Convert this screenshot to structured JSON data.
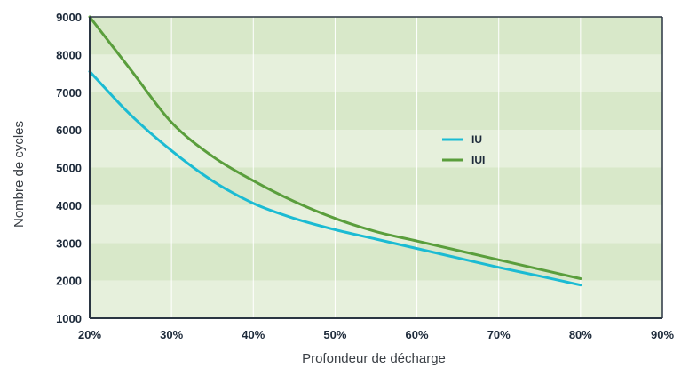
{
  "chart_data": {
    "type": "line",
    "xlabel": "Profondeur de décharge",
    "ylabel": "Nombre de cycles",
    "xlim": [
      20,
      90
    ],
    "ylim": [
      1000,
      9000
    ],
    "x_ticks": [
      "20%",
      "30%",
      "40%",
      "50%",
      "60%",
      "70%",
      "80%",
      "90%"
    ],
    "y_ticks": [
      "1000",
      "2000",
      "3000",
      "4000",
      "5000",
      "6000",
      "7000",
      "8000",
      "9000"
    ],
    "x_tick_values": [
      20,
      30,
      40,
      50,
      60,
      70,
      80,
      90
    ],
    "y_tick_values": [
      1000,
      2000,
      3000,
      4000,
      5000,
      6000,
      7000,
      8000,
      9000
    ],
    "series": [
      {
        "name": "IU",
        "color": "#1bbbd3",
        "x": [
          20,
          25,
          30,
          35,
          40,
          45,
          50,
          55,
          60,
          65,
          70,
          75,
          80
        ],
        "y": [
          7550,
          6400,
          5450,
          4650,
          4050,
          3650,
          3350,
          3100,
          2850,
          2600,
          2350,
          2120,
          1880
        ]
      },
      {
        "name": "IUI",
        "color": "#5a9e3c",
        "x": [
          20,
          25,
          30,
          35,
          40,
          45,
          50,
          55,
          60,
          65,
          70,
          75,
          80
        ],
        "y": [
          9000,
          7600,
          6200,
          5300,
          4650,
          4100,
          3650,
          3300,
          3050,
          2800,
          2550,
          2300,
          2050
        ]
      }
    ],
    "legend_position": "right",
    "grid": true,
    "band_colors": [
      "#e6f0dc",
      "#d8e8c9"
    ],
    "axis_color": "#2a3542"
  }
}
